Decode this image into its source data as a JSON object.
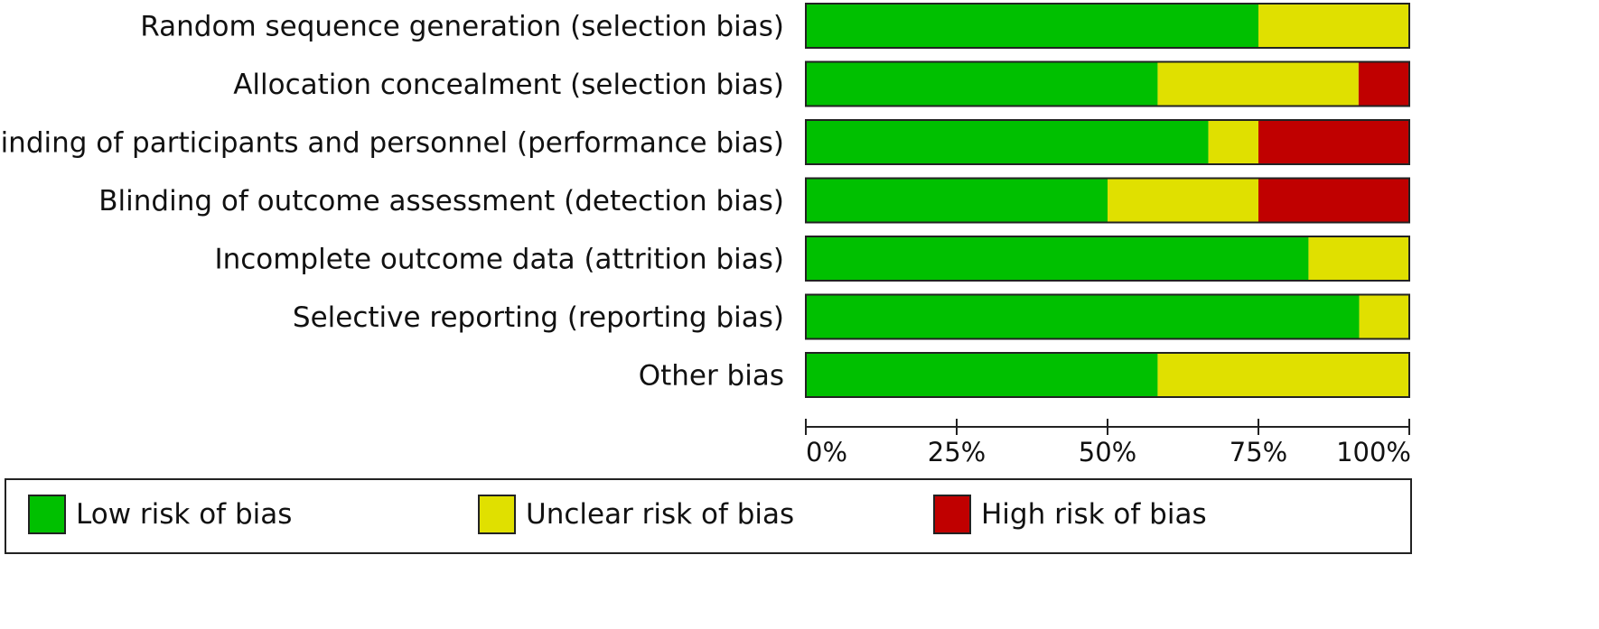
{
  "chart_data": {
    "type": "bar",
    "orientation": "horizontal",
    "stacked": true,
    "title": "",
    "xlabel": "",
    "ylabel": "",
    "xlim": [
      0,
      100
    ],
    "grid": false,
    "legend_position": "bottom",
    "categories": [
      "Random sequence generation (selection bias)",
      "Allocation concealment (selection bias)",
      "Blinding of participants and personnel (performance bias)",
      "Blinding of outcome assessment (detection bias)",
      "Incomplete outcome data (attrition bias)",
      "Selective reporting (reporting bias)",
      "Other bias"
    ],
    "series": [
      {
        "name": "Low risk of bias",
        "color": "#00c000",
        "values": [
          75,
          58.3,
          66.7,
          50,
          83.3,
          91.7,
          58.3
        ]
      },
      {
        "name": "Unclear risk of bias",
        "color": "#e0e000",
        "values": [
          25,
          33.3,
          8.3,
          25,
          16.7,
          8.3,
          41.7
        ]
      },
      {
        "name": "High risk of bias",
        "color": "#c00000",
        "values": [
          0,
          8.3,
          25,
          25,
          0,
          0,
          0
        ]
      }
    ],
    "xticks": [
      0,
      25,
      50,
      75,
      100
    ],
    "xtick_labels": [
      "0%",
      "25%",
      "50%",
      "75%",
      "100%"
    ]
  }
}
